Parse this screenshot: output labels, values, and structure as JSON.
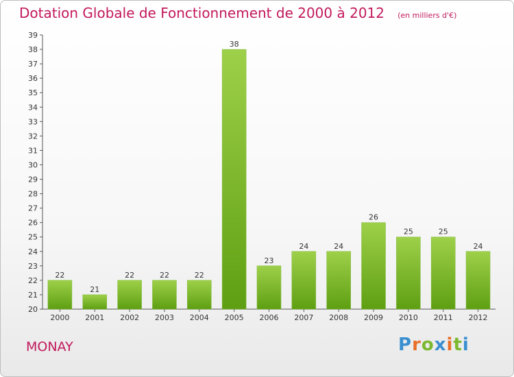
{
  "title": "Dotation Globale de Fonctionnement de 2000 à 2012",
  "subtitle": "(en milliers d'€)",
  "town": "MONAY",
  "logo": {
    "text": "Proxiti",
    "letters": [
      "P",
      "r",
      "o",
      "x",
      "i",
      "t",
      "i"
    ]
  },
  "colors": {
    "title": "#c2185b",
    "bar_light": "#9ed04a",
    "bar_dark": "#5e9f12",
    "logo": [
      "#3a8fd0",
      "#e8702a",
      "#7cb82f",
      "#3a8fd0",
      "#e8702a",
      "#7cb82f",
      "#3a8fd0"
    ]
  },
  "chart_data": {
    "type": "bar",
    "categories": [
      "2000",
      "2001",
      "2002",
      "2003",
      "2004",
      "2005",
      "2006",
      "2007",
      "2008",
      "2009",
      "2010",
      "2011",
      "2012"
    ],
    "values": [
      22,
      21,
      22,
      22,
      22,
      38,
      23,
      24,
      24,
      26,
      25,
      25,
      24
    ],
    "ylim": [
      20,
      39
    ],
    "yticks": [
      20,
      21,
      22,
      23,
      24,
      25,
      26,
      27,
      28,
      29,
      30,
      31,
      32,
      33,
      34,
      35,
      36,
      37,
      38,
      39
    ],
    "grid": false,
    "xlabel": "",
    "ylabel": ""
  }
}
